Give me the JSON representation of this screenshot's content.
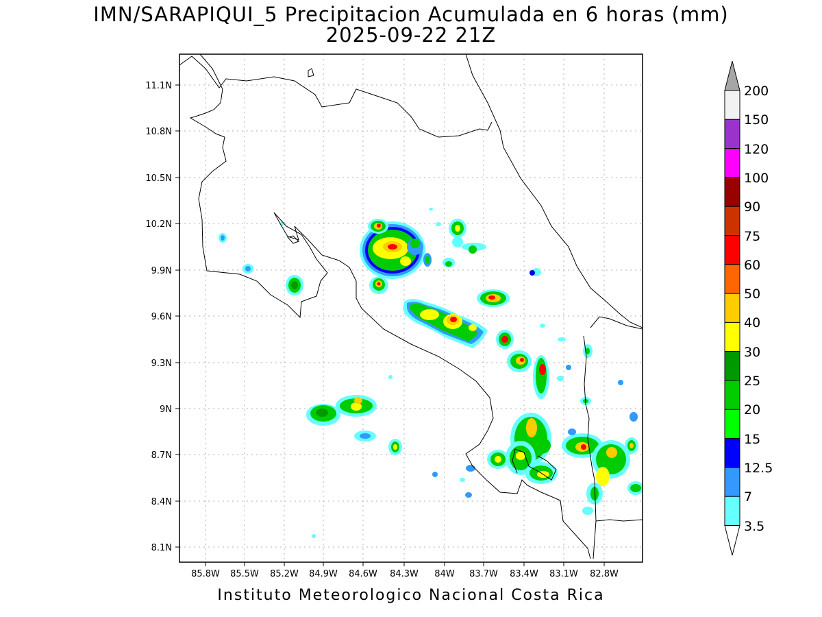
{
  "title_line1": "IMN/SARAPIQUI_5 Precipitacion Acumulada en 6 horas (mm)",
  "title_line2": "2025-09-22 21Z",
  "footer": "Instituto Meteorologico Nacional Costa Rica",
  "map": {
    "lon_ticks": [
      "85.8W",
      "85.5W",
      "85.2W",
      "84.9W",
      "84.6W",
      "84.3W",
      "84W",
      "83.7W",
      "83.4W",
      "83.1W",
      "82.8W"
    ],
    "lat_ticks": [
      "11.1N",
      "10.8N",
      "10.5N",
      "10.2N",
      "9.9N",
      "9.6N",
      "9.3N",
      "9N",
      "8.7N",
      "8.4N",
      "8.1N"
    ],
    "lon_range": [
      -85.95,
      -82.7
    ],
    "lat_range": [
      8.0,
      11.3
    ],
    "gridlines": true
  },
  "colorbar": {
    "labels": [
      "3.5",
      "7",
      "12.5",
      "15",
      "20",
      "25",
      "30",
      "40",
      "50",
      "60",
      "75",
      "90",
      "100",
      "120",
      "150",
      "200"
    ],
    "colors": {
      "b1": "#66ffff",
      "b2": "#3399ff",
      "b3": "#0000ff",
      "b4": "#00ff00",
      "b5": "#00cc00",
      "b6": "#009900",
      "b7": "#ffff00",
      "b8": "#ffcc00",
      "b9": "#ff6600",
      "b10": "#ff0000",
      "b11": "#cc3300",
      "b12": "#990000",
      "b13": "#ff00ff",
      "b14": "#9933cc",
      "b15": "#f2f2f2",
      "top_arrow": "#a6a6a6",
      "bottom_arrow": "#ffffff"
    }
  }
}
